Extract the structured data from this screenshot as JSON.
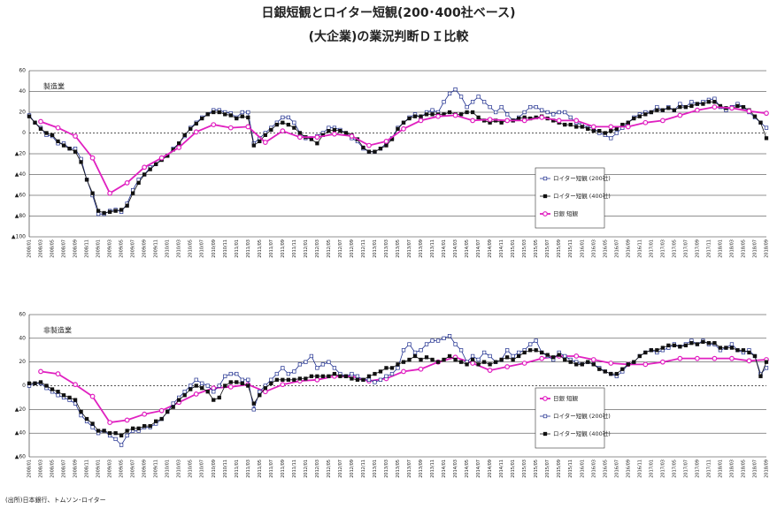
{
  "title": "日銀短観とロイター短観(200･400社ベース)",
  "subtitle": "(大企業)の業況判断ＤＩ比較",
  "source": "(出所)日本銀行、トムソン･ロイター",
  "chart_data": [
    {
      "type": "line",
      "panel_label": "製造業",
      "legend": "lower right",
      "grid": true,
      "categories": [
        "2008/01",
        null,
        "2008/03",
        null,
        "2008/05",
        null,
        "2008/07",
        null,
        "2008/09",
        null,
        "2008/11",
        null,
        "2009/01",
        null,
        "2009/03",
        null,
        "2009/05",
        null,
        "2009/07",
        null,
        "2009/09",
        null,
        "2009/11",
        null,
        "2010/01",
        null,
        "2010/03",
        null,
        "2010/05",
        null,
        "2010/07",
        null,
        "2010/09",
        null,
        "2010/11",
        null,
        "2011/01",
        null,
        "2011/03",
        null,
        "2011/05",
        null,
        "2011/07",
        null,
        "2011/09",
        null,
        "2011/11",
        null,
        "2012/01",
        null,
        "2012/03",
        null,
        "2012/05",
        null,
        "2012/07",
        null,
        "2012/09",
        null,
        "2012/11",
        null,
        "2013/01",
        null,
        "2013/03",
        null,
        "2013/05",
        null,
        "2013/07",
        null,
        "2013/09",
        null,
        "2013/11",
        null,
        "2014/01",
        null,
        "2014/03",
        null,
        "2014/05",
        null,
        "2014/07",
        null,
        "2014/09",
        null,
        "2014/11",
        null,
        "2015/01",
        null,
        "2015/03",
        null,
        "2015/05",
        null,
        "2015/07",
        null,
        "2015/09",
        null,
        "2015/11",
        null,
        "2016/01",
        null,
        "2016/03",
        null,
        "2016/05",
        null,
        "2016/07",
        null,
        "2016/09",
        null,
        "2016/11",
        null,
        "2017/01",
        null,
        "2017/03",
        null,
        "2017/05",
        null,
        "2017/07",
        null,
        "2017/09",
        null,
        "2017/11",
        null,
        "2018/01",
        null,
        "2018/03",
        null,
        "2018/05",
        null,
        "2018/07",
        null,
        "2018/09"
      ],
      "ylim": [
        -100,
        60
      ],
      "yticks": [
        {
          "value": -100,
          "label": "▲100"
        },
        {
          "value": -80,
          "label": "▲80"
        },
        {
          "value": -60,
          "label": "▲60"
        },
        {
          "value": -40,
          "label": "▲40"
        },
        {
          "value": -20,
          "label": "▲20"
        },
        0,
        20,
        40,
        60
      ],
      "series": [
        {
          "name": "ロイター短観 (200社)",
          "color": "#1f2f8f",
          "marker": "open-square",
          "values": [
            17,
            10,
            5,
            -2,
            -3,
            -10,
            -10,
            -15,
            -15,
            -25,
            -45,
            -60,
            -78,
            -78,
            -75,
            -74,
            -76,
            -68,
            -55,
            -45,
            -40,
            -33,
            -30,
            -25,
            -22,
            -15,
            -10,
            -3,
            5,
            10,
            15,
            18,
            22,
            22,
            20,
            19,
            15,
            20,
            20,
            -10,
            -5,
            0,
            5,
            10,
            15,
            15,
            10,
            0,
            -5,
            -5,
            -3,
            0,
            5,
            5,
            3,
            0,
            -5,
            -8,
            -15,
            -18,
            -18,
            -15,
            -10,
            -5,
            5,
            10,
            15,
            18,
            15,
            20,
            22,
            20,
            30,
            38,
            42,
            35,
            25,
            30,
            35,
            30,
            25,
            20,
            25,
            18,
            12,
            15,
            20,
            25,
            25,
            22,
            20,
            18,
            20,
            20,
            15,
            10,
            8,
            5,
            5,
            0,
            -2,
            -5,
            0,
            5,
            10,
            15,
            18,
            20,
            20,
            25,
            22,
            25,
            22,
            28,
            25,
            30,
            28,
            30,
            32,
            33,
            25,
            22,
            25,
            28,
            25,
            20,
            15,
            10,
            5
          ]
        },
        {
          "name": "ロイター短観 (400社)",
          "color": "#111111",
          "marker": "filled-square",
          "values": [
            16,
            10,
            4,
            0,
            -2,
            -8,
            -12,
            -15,
            -18,
            -28,
            -45,
            -58,
            -75,
            -77,
            -76,
            -75,
            -74,
            -70,
            -58,
            -48,
            -40,
            -35,
            -30,
            -26,
            -22,
            -16,
            -10,
            -2,
            4,
            9,
            14,
            18,
            20,
            20,
            18,
            17,
            14,
            16,
            15,
            -12,
            -8,
            -2,
            3,
            8,
            10,
            8,
            5,
            0,
            -4,
            -6,
            -10,
            -2,
            2,
            3,
            2,
            0,
            -2,
            -6,
            -14,
            -18,
            -18,
            -15,
            -12,
            -6,
            4,
            10,
            14,
            16,
            16,
            18,
            18,
            18,
            18,
            20,
            18,
            18,
            20,
            20,
            15,
            12,
            10,
            12,
            10,
            12,
            12,
            14,
            15,
            14,
            15,
            16,
            14,
            12,
            10,
            8,
            8,
            6,
            6,
            4,
            2,
            2,
            0,
            2,
            4,
            8,
            10,
            14,
            16,
            18,
            20,
            22,
            22,
            24,
            22,
            25,
            25,
            26,
            28,
            28,
            30,
            30,
            26,
            24,
            24,
            26,
            25,
            22,
            16,
            10,
            -5
          ]
        },
        {
          "name": "日銀 短観",
          "color": "#e020c0",
          "marker": "circle",
          "x": [
            "2008/03",
            "2008/06",
            "2008/09",
            "2008/12",
            "2009/03",
            "2009/06",
            "2009/09",
            "2009/12",
            "2010/03",
            "2010/06",
            "2010/09",
            "2010/12",
            "2011/03",
            "2011/06",
            "2011/09",
            "2011/12",
            "2012/03",
            "2012/06",
            "2012/09",
            "2012/12",
            "2013/03",
            "2013/06",
            "2013/09",
            "2013/12",
            "2014/03",
            "2014/06",
            "2014/09",
            "2014/12",
            "2015/03",
            "2015/06",
            "2015/09",
            "2015/12",
            "2016/03",
            "2016/06",
            "2016/09",
            "2016/12",
            "2017/03",
            "2017/06",
            "2017/09",
            "2017/12",
            "2018/03",
            "2018/06",
            "2018/09"
          ],
          "values": [
            11,
            5,
            -3,
            -24,
            -58,
            -48,
            -33,
            -24,
            -14,
            1,
            8,
            5,
            6,
            -9,
            2,
            -4,
            -4,
            -1,
            -3,
            -12,
            -8,
            4,
            12,
            16,
            17,
            12,
            13,
            12,
            12,
            15,
            12,
            12,
            6,
            6,
            6,
            10,
            12,
            17,
            22,
            25,
            24,
            21,
            19
          ]
        }
      ]
    },
    {
      "type": "line",
      "panel_label": "非製造業",
      "legend": "lower right",
      "grid": true,
      "categories": [
        "2008/01",
        null,
        "2008/03",
        null,
        "2008/05",
        null,
        "2008/07",
        null,
        "2008/09",
        null,
        "2008/11",
        null,
        "2009/01",
        null,
        "2009/03",
        null,
        "2009/05",
        null,
        "2009/07",
        null,
        "2009/09",
        null,
        "2009/11",
        null,
        "2010/01",
        null,
        "2010/03",
        null,
        "2010/05",
        null,
        "2010/07",
        null,
        "2010/09",
        null,
        "2010/11",
        null,
        "2011/01",
        null,
        "2011/03",
        null,
        "2011/05",
        null,
        "2011/07",
        null,
        "2011/09",
        null,
        "2011/11",
        null,
        "2012/01",
        null,
        "2012/03",
        null,
        "2012/05",
        null,
        "2012/07",
        null,
        "2012/09",
        null,
        "2012/11",
        null,
        "2013/01",
        null,
        "2013/03",
        null,
        "2013/05",
        null,
        "2013/07",
        null,
        "2013/09",
        null,
        "2013/11",
        null,
        "2014/01",
        null,
        "2014/03",
        null,
        "2014/05",
        null,
        "2014/07",
        null,
        "2014/09",
        null,
        "2014/11",
        null,
        "2015/01",
        null,
        "2015/03",
        null,
        "2015/05",
        null,
        "2015/07",
        null,
        "2015/09",
        null,
        "2015/11",
        null,
        "2016/01",
        null,
        "2016/03",
        null,
        "2016/05",
        null,
        "2016/07",
        null,
        "2016/09",
        null,
        "2016/11",
        null,
        "2017/01",
        null,
        "2017/03",
        null,
        "2017/05",
        null,
        "2017/07",
        null,
        "2017/09",
        null,
        "2017/11",
        null,
        "2018/01",
        null,
        "2018/03",
        null,
        "2018/05",
        null,
        "2018/07",
        null,
        "2018/09"
      ],
      "ylim": [
        -60,
        60
      ],
      "yticks": [
        {
          "value": -60,
          "label": "▲60"
        },
        {
          "value": -40,
          "label": "▲40"
        },
        {
          "value": -20,
          "label": "▲20"
        },
        0,
        20,
        40,
        60
      ],
      "series": [
        {
          "name": "日銀 短観",
          "color": "#e020c0",
          "marker": "circle",
          "x": [
            "2008/03",
            "2008/06",
            "2008/09",
            "2008/12",
            "2009/03",
            "2009/06",
            "2009/09",
            "2009/12",
            "2010/03",
            "2010/06",
            "2010/09",
            "2010/12",
            "2011/03",
            "2011/06",
            "2011/09",
            "2011/12",
            "2012/03",
            "2012/06",
            "2012/09",
            "2012/12",
            "2013/03",
            "2013/06",
            "2013/09",
            "2013/12",
            "2014/03",
            "2014/06",
            "2014/09",
            "2014/12",
            "2015/03",
            "2015/06",
            "2015/09",
            "2015/12",
            "2016/03",
            "2016/06",
            "2016/09",
            "2016/12",
            "2017/03",
            "2017/06",
            "2017/09",
            "2017/12",
            "2018/03",
            "2018/06",
            "2018/09"
          ],
          "values": [
            12,
            10,
            1,
            -9,
            -31,
            -29,
            -24,
            -21,
            -14,
            -7,
            -2,
            -1,
            1,
            -5,
            1,
            4,
            5,
            8,
            8,
            4,
            6,
            12,
            14,
            20,
            24,
            19,
            13,
            16,
            19,
            23,
            25,
            25,
            22,
            19,
            18,
            18,
            20,
            23,
            23,
            23,
            23,
            21,
            22
          ]
        },
        {
          "name": "ロイター短観 (200社)",
          "color": "#1f2f8f",
          "marker": "open-square",
          "values": [
            0,
            2,
            2,
            -2,
            -5,
            -8,
            -10,
            -12,
            -15,
            -25,
            -30,
            -35,
            -40,
            -38,
            -42,
            -45,
            -50,
            -42,
            -38,
            -38,
            -35,
            -35,
            -32,
            -28,
            -22,
            -15,
            -10,
            -5,
            0,
            5,
            2,
            0,
            -5,
            0,
            8,
            10,
            10,
            5,
            5,
            -20,
            -5,
            0,
            5,
            10,
            15,
            10,
            12,
            18,
            20,
            25,
            15,
            18,
            20,
            15,
            10,
            8,
            10,
            8,
            5,
            5,
            3,
            5,
            8,
            10,
            15,
            30,
            35,
            28,
            30,
            35,
            38,
            38,
            40,
            42,
            35,
            30,
            20,
            25,
            22,
            28,
            25,
            20,
            22,
            30,
            25,
            28,
            30,
            35,
            38,
            28,
            25,
            22,
            28,
            25,
            22,
            20,
            18,
            20,
            18,
            15,
            12,
            10,
            8,
            12,
            18,
            20,
            25,
            28,
            30,
            28,
            30,
            32,
            35,
            33,
            35,
            38,
            35,
            38,
            35,
            35,
            30,
            32,
            35,
            30,
            28,
            30,
            25,
            10,
            15
          ]
        },
        {
          "name": "ロイター短観 (400社)",
          "color": "#111111",
          "marker": "filled-square",
          "values": [
            2,
            2,
            3,
            0,
            -3,
            -5,
            -8,
            -10,
            -12,
            -22,
            -28,
            -32,
            -38,
            -38,
            -40,
            -40,
            -42,
            -38,
            -36,
            -36,
            -34,
            -34,
            -30,
            -28,
            -22,
            -18,
            -12,
            -8,
            -3,
            0,
            -2,
            -5,
            -12,
            -10,
            0,
            3,
            3,
            2,
            0,
            -15,
            -8,
            -2,
            2,
            5,
            5,
            5,
            5,
            6,
            6,
            8,
            8,
            8,
            8,
            10,
            8,
            8,
            6,
            5,
            5,
            8,
            10,
            12,
            15,
            15,
            18,
            20,
            22,
            25,
            22,
            24,
            22,
            20,
            22,
            25,
            22,
            20,
            18,
            22,
            18,
            20,
            18,
            20,
            22,
            24,
            22,
            25,
            28,
            30,
            30,
            28,
            26,
            24,
            26,
            22,
            20,
            18,
            18,
            20,
            18,
            14,
            12,
            10,
            10,
            14,
            18,
            20,
            25,
            28,
            30,
            30,
            32,
            34,
            34,
            33,
            34,
            36,
            35,
            37,
            36,
            36,
            32,
            32,
            32,
            30,
            30,
            28,
            25,
            8,
            20
          ]
        }
      ]
    }
  ]
}
